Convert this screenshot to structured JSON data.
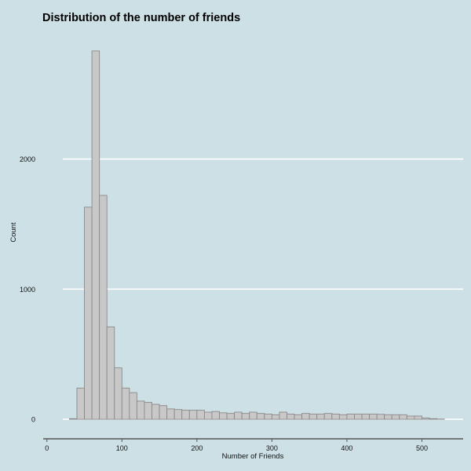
{
  "chart_data": {
    "type": "histogram",
    "title": "Distribution of the number of friends",
    "xlabel": "Number of Friends",
    "ylabel": "Count",
    "bin_width": 10,
    "bins_start": [
      30,
      40,
      50,
      60,
      70,
      80,
      90,
      100,
      110,
      120,
      130,
      140,
      150,
      160,
      170,
      180,
      190,
      200,
      210,
      220,
      230,
      240,
      250,
      260,
      270,
      280,
      290,
      300,
      310,
      320,
      330,
      340,
      350,
      360,
      370,
      380,
      390,
      400,
      410,
      420,
      430,
      440,
      450,
      460,
      470,
      480,
      490,
      500,
      510,
      520
    ],
    "values": [
      5,
      240,
      1630,
      2830,
      1720,
      710,
      395,
      240,
      205,
      140,
      130,
      115,
      105,
      80,
      75,
      70,
      70,
      70,
      55,
      60,
      50,
      45,
      55,
      45,
      55,
      45,
      40,
      35,
      55,
      40,
      35,
      45,
      40,
      40,
      45,
      40,
      35,
      40,
      40,
      40,
      40,
      38,
      35,
      35,
      35,
      25,
      25,
      10,
      5,
      2
    ],
    "xlim": [
      -5,
      555
    ],
    "ylim": [
      -150,
      2950
    ],
    "x_ticks": [
      0,
      100,
      200,
      300,
      400,
      500
    ],
    "y_ticks": [
      0,
      1000,
      2000
    ],
    "grid": "horizontal",
    "colors": {
      "background": "#cde0e6",
      "bar_fill": "#c8c8c8",
      "bar_stroke": "#8a8a8a",
      "grid": "#ffffff",
      "axis": "#555555"
    }
  }
}
